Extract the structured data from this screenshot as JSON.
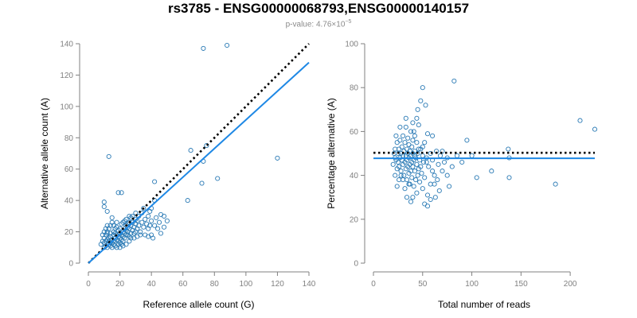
{
  "header": {
    "title": "rs3785 - ENSG00000068793,ENSG00000140157",
    "subtitle_prefix": "p-value: 4.76×10",
    "subtitle_exponent": "−5"
  },
  "colors": {
    "points": "#2a7ab5",
    "fit_line": "#1e88e5",
    "reference_line": "#000000",
    "axis": "#808080"
  },
  "chart_data": [
    {
      "type": "scatter",
      "title": "",
      "xlabel": "Reference allele count (G)",
      "ylabel": "Alternative allele count (A)",
      "xlim": [
        0,
        140
      ],
      "ylim": [
        0,
        140
      ],
      "xticks": [
        0,
        20,
        40,
        60,
        80,
        100,
        120,
        140
      ],
      "yticks": [
        0,
        20,
        40,
        60,
        80,
        100,
        120,
        140
      ],
      "reference_line": {
        "style": "dotted",
        "from": [
          0,
          0
        ],
        "to": [
          140,
          140
        ]
      },
      "fit_line": {
        "style": "solid",
        "from": [
          0,
          0
        ],
        "to": [
          140,
          128
        ]
      },
      "points": [
        [
          10,
          10
        ],
        [
          11,
          11
        ],
        [
          12,
          10
        ],
        [
          13,
          12
        ],
        [
          14,
          11
        ],
        [
          15,
          13
        ],
        [
          16,
          12
        ],
        [
          17,
          11
        ],
        [
          18,
          10
        ],
        [
          19,
          12
        ],
        [
          10,
          13
        ],
        [
          11,
          14
        ],
        [
          12,
          15
        ],
        [
          13,
          16
        ],
        [
          14,
          17
        ],
        [
          15,
          15
        ],
        [
          16,
          14
        ],
        [
          17,
          16
        ],
        [
          18,
          18
        ],
        [
          19,
          17
        ],
        [
          10,
          16
        ],
        [
          11,
          18
        ],
        [
          12,
          19
        ],
        [
          13,
          14
        ],
        [
          14,
          13
        ],
        [
          15,
          10
        ],
        [
          16,
          18
        ],
        [
          17,
          19
        ],
        [
          18,
          15
        ],
        [
          19,
          14
        ],
        [
          20,
          13
        ],
        [
          20,
          16
        ],
        [
          20,
          19
        ],
        [
          21,
          12
        ],
        [
          21,
          15
        ],
        [
          21,
          18
        ],
        [
          22,
          14
        ],
        [
          22,
          17
        ],
        [
          22,
          20
        ],
        [
          23,
          16
        ],
        [
          23,
          19
        ],
        [
          23,
          22
        ],
        [
          24,
          18
        ],
        [
          24,
          21
        ],
        [
          24,
          24
        ],
        [
          25,
          20
        ],
        [
          25,
          23
        ],
        [
          26,
          17
        ],
        [
          26,
          22
        ],
        [
          26,
          26
        ],
        [
          27,
          19
        ],
        [
          27,
          24
        ],
        [
          28,
          21
        ],
        [
          28,
          26
        ],
        [
          29,
          23
        ],
        [
          30,
          20
        ],
        [
          30,
          25
        ],
        [
          31,
          22
        ],
        [
          31,
          27
        ],
        [
          32,
          24
        ],
        [
          33,
          20
        ],
        [
          34,
          26
        ],
        [
          35,
          23
        ],
        [
          36,
          28
        ],
        [
          37,
          25
        ],
        [
          38,
          22
        ],
        [
          39,
          24
        ],
        [
          40,
          27
        ],
        [
          42,
          24
        ],
        [
          44,
          22
        ],
        [
          45,
          26
        ],
        [
          46,
          19
        ],
        [
          48,
          23
        ],
        [
          41,
          16
        ],
        [
          40,
          18
        ],
        [
          36,
          18
        ],
        [
          33,
          18
        ],
        [
          29,
          16
        ],
        [
          26,
          14
        ],
        [
          24,
          12
        ],
        [
          22,
          11
        ],
        [
          20,
          10
        ],
        [
          12,
          20
        ],
        [
          13,
          22
        ],
        [
          14,
          24
        ],
        [
          15,
          26
        ],
        [
          16,
          24
        ],
        [
          17,
          22
        ],
        [
          18,
          26
        ],
        [
          19,
          21
        ],
        [
          20,
          22
        ],
        [
          21,
          25
        ],
        [
          22,
          26
        ],
        [
          23,
          27
        ],
        [
          24,
          28
        ],
        [
          25,
          25
        ],
        [
          28,
          30
        ],
        [
          30,
          32
        ],
        [
          32,
          30
        ],
        [
          34,
          32
        ],
        [
          35,
          35
        ],
        [
          38,
          30
        ],
        [
          39,
          33
        ],
        [
          40,
          35
        ],
        [
          42,
          40
        ],
        [
          30,
          28
        ],
        [
          27,
          29
        ],
        [
          26,
          30
        ],
        [
          10,
          39
        ],
        [
          12,
          33
        ],
        [
          10,
          36
        ],
        [
          13,
          68
        ],
        [
          19,
          45
        ],
        [
          21,
          45
        ],
        [
          15,
          29
        ],
        [
          10,
          20
        ],
        [
          11,
          22
        ],
        [
          12,
          24
        ],
        [
          9,
          18
        ],
        [
          9,
          14
        ],
        [
          8,
          12
        ],
        [
          14,
          19
        ],
        [
          16,
          20
        ],
        [
          18,
          23
        ],
        [
          25,
          18
        ],
        [
          27,
          16
        ],
        [
          29,
          19
        ],
        [
          31,
          17
        ],
        [
          38,
          17
        ],
        [
          43,
          29
        ],
        [
          48,
          30
        ],
        [
          50,
          27
        ],
        [
          46,
          31
        ],
        [
          42,
          52
        ],
        [
          63,
          40
        ],
        [
          65,
          72
        ],
        [
          72,
          51
        ],
        [
          73,
          65
        ],
        [
          75,
          75
        ],
        [
          82,
          54
        ],
        [
          120,
          67
        ],
        [
          73,
          137
        ],
        [
          88,
          139
        ]
      ]
    },
    {
      "type": "scatter",
      "title": "",
      "xlabel": "Total number of reads",
      "ylabel": "Percentage alternative (A)",
      "xlim": [
        0,
        225
      ],
      "ylim": [
        0,
        100
      ],
      "xticks": [
        0,
        50,
        100,
        150,
        200
      ],
      "yticks": [
        0,
        20,
        40,
        60,
        80,
        100
      ],
      "reference_line": {
        "style": "dotted",
        "y": 50.3
      },
      "fit_line": {
        "style": "solid",
        "y": 47.8
      },
      "points": [
        [
          20,
          45
        ],
        [
          21,
          50
        ],
        [
          22,
          48
        ],
        [
          22,
          52
        ],
        [
          23,
          47
        ],
        [
          24,
          43
        ],
        [
          24,
          55
        ],
        [
          25,
          50
        ],
        [
          25,
          46
        ],
        [
          26,
          44
        ],
        [
          26,
          52
        ],
        [
          27,
          48
        ],
        [
          27,
          56
        ],
        [
          28,
          42
        ],
        [
          28,
          50
        ],
        [
          29,
          47
        ],
        [
          29,
          53
        ],
        [
          30,
          45
        ],
        [
          30,
          49
        ],
        [
          30,
          58
        ],
        [
          31,
          40
        ],
        [
          31,
          51
        ],
        [
          32,
          46
        ],
        [
          32,
          55
        ],
        [
          33,
          43
        ],
        [
          33,
          49
        ],
        [
          33,
          62
        ],
        [
          34,
          38
        ],
        [
          34,
          47
        ],
        [
          34,
          52
        ],
        [
          35,
          44
        ],
        [
          35,
          50
        ],
        [
          35,
          57
        ],
        [
          36,
          41
        ],
        [
          36,
          48
        ],
        [
          36,
          54
        ],
        [
          37,
          36
        ],
        [
          37,
          45
        ],
        [
          37,
          51
        ],
        [
          38,
          42
        ],
        [
          38,
          49
        ],
        [
          38,
          60
        ],
        [
          39,
          39
        ],
        [
          39,
          46
        ],
        [
          39,
          53
        ],
        [
          40,
          44
        ],
        [
          40,
          50
        ],
        [
          40,
          56
        ],
        [
          41,
          35
        ],
        [
          41,
          47
        ],
        [
          42,
          42
        ],
        [
          42,
          51
        ],
        [
          42,
          58
        ],
        [
          43,
          38
        ],
        [
          43,
          48
        ],
        [
          44,
          45
        ],
        [
          44,
          55
        ],
        [
          45,
          40
        ],
        [
          45,
          50
        ],
        [
          46,
          63
        ],
        [
          46,
          43
        ],
        [
          47,
          37
        ],
        [
          47,
          47
        ],
        [
          48,
          52
        ],
        [
          48,
          44
        ],
        [
          49,
          41
        ],
        [
          50,
          49
        ],
        [
          50,
          34
        ],
        [
          51,
          46
        ],
        [
          52,
          55
        ],
        [
          52,
          39
        ],
        [
          54,
          48
        ],
        [
          55,
          31
        ],
        [
          56,
          44
        ],
        [
          58,
          50
        ],
        [
          58,
          36
        ],
        [
          60,
          42
        ],
        [
          60,
          47
        ],
        [
          62,
          40
        ],
        [
          64,
          51
        ],
        [
          65,
          38
        ],
        [
          66,
          45
        ],
        [
          68,
          49
        ],
        [
          70,
          42
        ],
        [
          72,
          46
        ],
        [
          75,
          40
        ],
        [
          77,
          35
        ],
        [
          80,
          44
        ],
        [
          85,
          49
        ],
        [
          90,
          46
        ],
        [
          95,
          56
        ],
        [
          100,
          49
        ],
        [
          105,
          39
        ],
        [
          120,
          42
        ],
        [
          137,
          52
        ],
        [
          138,
          48
        ],
        [
          138,
          39
        ],
        [
          185,
          36
        ],
        [
          210,
          65
        ],
        [
          225,
          61
        ],
        [
          48,
          74
        ],
        [
          50,
          80
        ],
        [
          53,
          72
        ],
        [
          45,
          70
        ],
        [
          44,
          66
        ],
        [
          40,
          64
        ],
        [
          82,
          83
        ],
        [
          42,
          49
        ],
        [
          36,
          36
        ],
        [
          30,
          38
        ],
        [
          28,
          40
        ],
        [
          26,
          38
        ],
        [
          24,
          35
        ],
        [
          32,
          34
        ],
        [
          34,
          30
        ],
        [
          38,
          28
        ],
        [
          52,
          27
        ],
        [
          55,
          26
        ],
        [
          58,
          29
        ],
        [
          63,
          30
        ],
        [
          44,
          32
        ],
        [
          40,
          30
        ],
        [
          22,
          40
        ],
        [
          23,
          58
        ],
        [
          27,
          62
        ],
        [
          33,
          66
        ],
        [
          41,
          60
        ],
        [
          55,
          59
        ],
        [
          60,
          58
        ],
        [
          46,
          52
        ],
        [
          50,
          53
        ],
        [
          54,
          46
        ],
        [
          62,
          36
        ],
        [
          67,
          33
        ],
        [
          70,
          51
        ],
        [
          75,
          48
        ]
      ]
    }
  ]
}
